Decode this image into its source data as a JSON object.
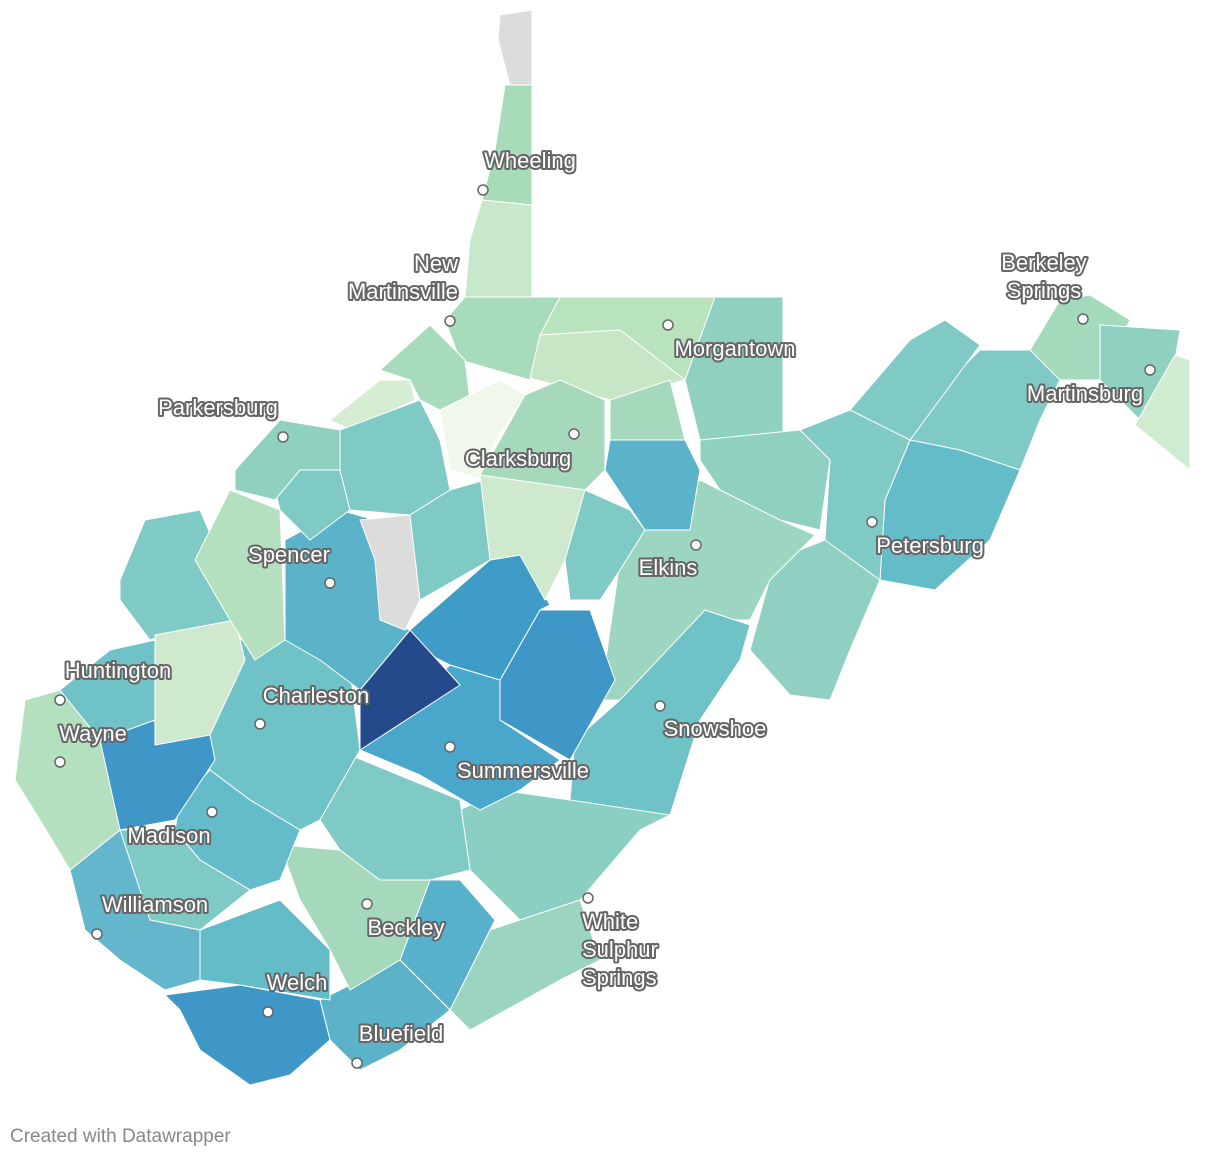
{
  "cities": [
    {
      "lines": [
        "Wheeling"
      ]
    },
    {
      "lines": [
        "New",
        "Martinsville"
      ]
    },
    {
      "lines": [
        "Morgantown"
      ]
    },
    {
      "lines": [
        "Berkeley",
        "Springs"
      ]
    },
    {
      "lines": [
        "Martinsburg"
      ]
    },
    {
      "lines": [
        "Parkersburg"
      ]
    },
    {
      "lines": [
        "Clarksburg"
      ]
    },
    {
      "lines": [
        "Spencer"
      ]
    },
    {
      "lines": [
        "Elkins"
      ]
    },
    {
      "lines": [
        "Petersburg"
      ]
    },
    {
      "lines": [
        "Huntington"
      ]
    },
    {
      "lines": [
        "Charleston"
      ]
    },
    {
      "lines": [
        "Wayne"
      ]
    },
    {
      "lines": [
        "Snowshoe"
      ]
    },
    {
      "lines": [
        "Summersville"
      ]
    },
    {
      "lines": [
        "Madison"
      ]
    },
    {
      "lines": [
        "Williamson"
      ]
    },
    {
      "lines": [
        "Beckley"
      ]
    },
    {
      "lines": [
        "White",
        "Sulphur",
        "Springs"
      ]
    },
    {
      "lines": [
        "Welch"
      ]
    },
    {
      "lines": [
        "Bluefield"
      ]
    }
  ],
  "footer": "Created with Datawrapper"
}
